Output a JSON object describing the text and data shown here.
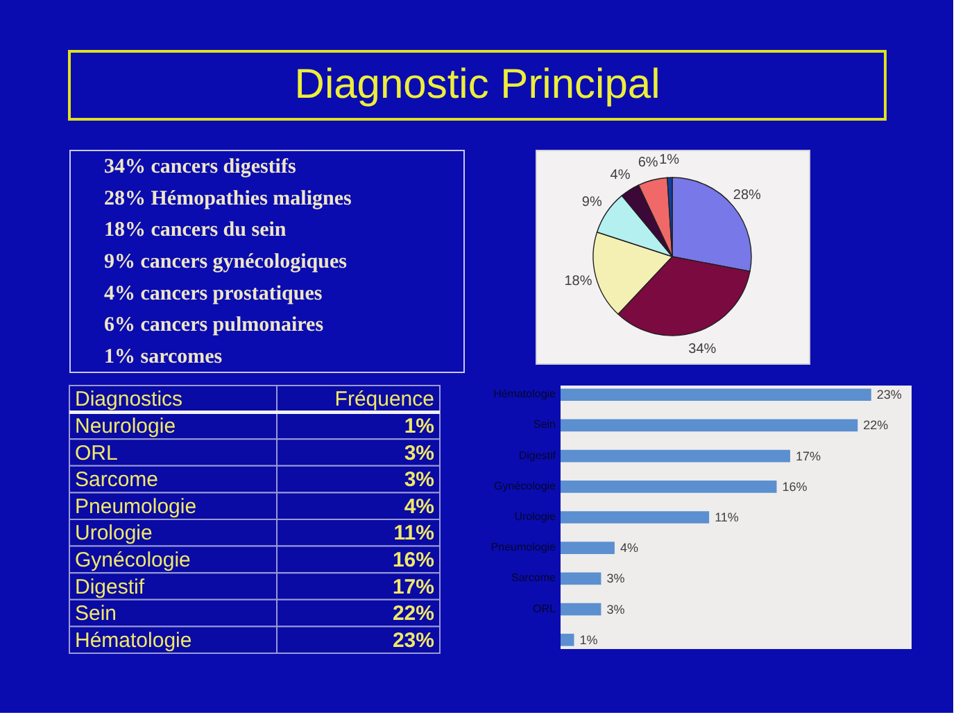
{
  "chart_data": [
    {
      "type": "other",
      "title": "Diagnostic Principal"
    },
    {
      "type": "other",
      "annotations": [
        "34% cancers digestifs",
        "28% Hémopathies malignes",
        "18% cancers du sein",
        "9% cancers gynécologiques",
        "4% cancers prostatiques",
        "6% cancers pulmonaires",
        "1% sarcomes"
      ]
    },
    {
      "type": "pie",
      "values": [
        28,
        34,
        18,
        9,
        4,
        6,
        1
      ],
      "colors": [
        "#7878e8",
        "#7a0a40",
        "#f4f0b4",
        "#b4f0f0",
        "#3c0838",
        "#f06868",
        "#1040a0"
      ],
      "value_labels": [
        "28%",
        "34%",
        "18%",
        "9%",
        "4%",
        "6%",
        "1%"
      ]
    },
    {
      "type": "other",
      "annotations": [
        "Diagnostics",
        "Fréquence"
      ],
      "categories": [
        "Neurologie",
        "ORL",
        "Sarcome",
        "Pneumologie",
        "Urologie",
        "Gynécologie",
        "Digestif",
        "Sein",
        "Hématologie"
      ],
      "value_labels": [
        "1%",
        "3%",
        "3%",
        "4%",
        "11%",
        "16%",
        "17%",
        "22%",
        "23%"
      ]
    },
    {
      "type": "bar",
      "orientation": "horizontal",
      "categories": [
        "Hématologie",
        "Sein",
        "Digestif",
        "Gynécologie",
        "Urologie",
        "Pneumologie",
        "Sarcome",
        "ORL",
        null
      ],
      "values": [
        23,
        22,
        17,
        16,
        11,
        4,
        3,
        3,
        1
      ],
      "color": "#5b8fd0",
      "value_labels": [
        "23%",
        "22%",
        "17%",
        "16%",
        "11%",
        "4%",
        "3%",
        "3%",
        "1%"
      ],
      "tick_labels": "y"
    }
  ]
}
